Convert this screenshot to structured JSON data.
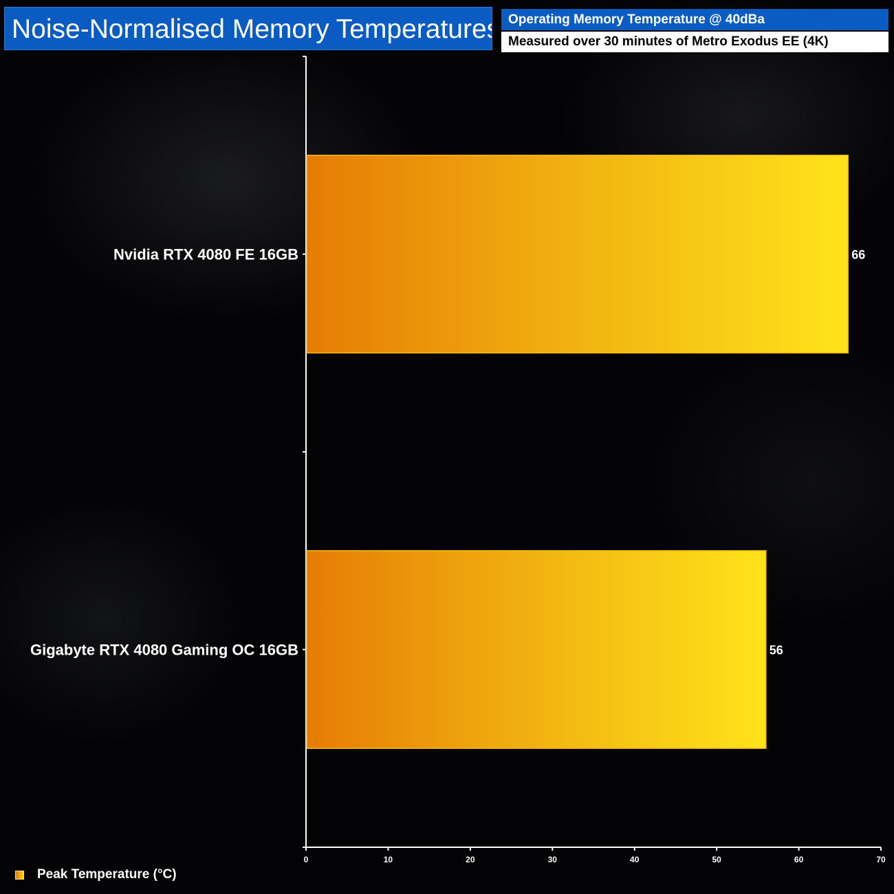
{
  "header": {
    "title": "Noise-Normalised Memory Temperatures",
    "subtitle_top": "Operating Memory Temperature @ 40dBa",
    "subtitle_bottom": "Measured over 30 minutes of Metro Exodus EE (4K)"
  },
  "legend": {
    "label": "Peak Temperature (°C)"
  },
  "colors": {
    "bar_gradient_start": "#e67c05",
    "bar_gradient_end": "#ffe31a",
    "bar_border": "#f3b80e",
    "title_bg": "#0a5cc2"
  },
  "chart_data": {
    "type": "bar",
    "orientation": "horizontal",
    "categories": [
      "Nvidia RTX 4080 FE 16GB",
      "Gigabyte RTX 4080 Gaming OC 16GB"
    ],
    "series": [
      {
        "name": "Peak Temperature (°C)",
        "values": [
          66,
          56
        ]
      }
    ],
    "xlim": [
      0,
      70
    ],
    "xticks": [
      0,
      10,
      20,
      30,
      40,
      50,
      60,
      70
    ],
    "data_labels": [
      "66",
      "56"
    ],
    "grid": false,
    "legend_position": "bottom-left"
  }
}
